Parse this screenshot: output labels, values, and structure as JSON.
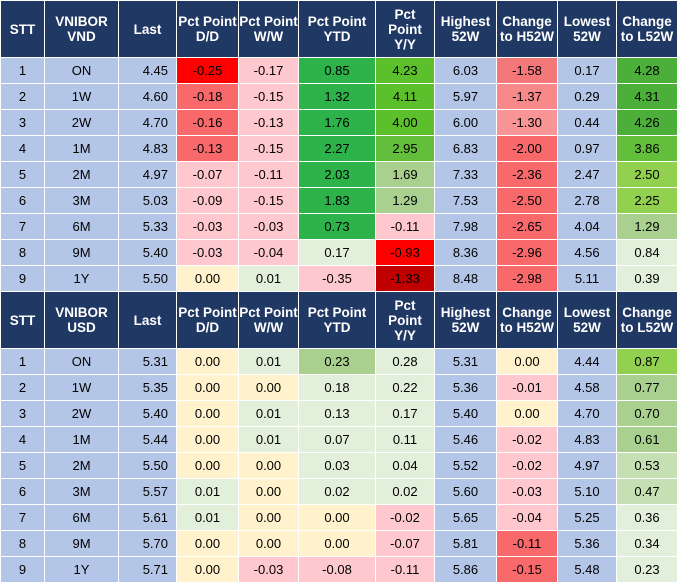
{
  "colors": {
    "header_bg": "#203864",
    "label_bg": "#b4c6e7",
    "text": "#000000"
  },
  "vnd": {
    "headers": {
      "stt": "STT",
      "name": "VNIBOR VND",
      "last": "Last",
      "dd": "Pct Point D/D",
      "ww": "Pct Point W/W",
      "ytd": "Pct Point YTD",
      "yy": "Pct Point Y/Y",
      "h52": "Highest 52W",
      "chh": "Change to H52W",
      "l52": "Lowest 52W",
      "chl": "Change to L52W"
    },
    "rows": [
      {
        "stt": "1",
        "term": "ON",
        "last": "4.45",
        "dd": "-0.25",
        "ww": "-0.17",
        "ytd": "0.85",
        "yy": "4.23",
        "h52": "6.03",
        "chh": "-1.58",
        "l52": "0.17",
        "chl": "4.28",
        "c": {
          "dd": "#ff0000",
          "ww": "#ffc7ce",
          "ytd": "#2db34a",
          "yy": "#5cc02d",
          "h52": "#b4c6e7",
          "chh": "#f4777a",
          "l52": "#b4c6e7",
          "chl": "#4caf3a"
        }
      },
      {
        "stt": "2",
        "term": "1W",
        "last": "4.60",
        "dd": "-0.18",
        "ww": "-0.15",
        "ytd": "1.32",
        "yy": "4.11",
        "h52": "5.97",
        "chh": "-1.37",
        "l52": "0.29",
        "chl": "4.31",
        "c": {
          "dd": "#f8696b",
          "ww": "#ffc7ce",
          "ytd": "#2db34a",
          "yy": "#5cc02d",
          "h52": "#b4c6e7",
          "chh": "#f8898b",
          "l52": "#b4c6e7",
          "chl": "#4caf3a"
        }
      },
      {
        "stt": "3",
        "term": "2W",
        "last": "4.70",
        "dd": "-0.16",
        "ww": "-0.13",
        "ytd": "1.76",
        "yy": "4.00",
        "h52": "6.00",
        "chh": "-1.30",
        "l52": "0.44",
        "chl": "4.26",
        "c": {
          "dd": "#f8696b",
          "ww": "#ffc7ce",
          "ytd": "#2db34a",
          "yy": "#5cc02d",
          "h52": "#b4c6e7",
          "chh": "#f99596",
          "l52": "#b4c6e7",
          "chl": "#4caf3a"
        }
      },
      {
        "stt": "4",
        "term": "1M",
        "last": "4.83",
        "dd": "-0.13",
        "ww": "-0.15",
        "ytd": "2.27",
        "yy": "2.95",
        "h52": "6.83",
        "chh": "-2.00",
        "l52": "0.97",
        "chl": "3.86",
        "c": {
          "dd": "#f8696b",
          "ww": "#ffc7ce",
          "ytd": "#2db34a",
          "yy": "#63be3b",
          "h52": "#b4c6e7",
          "chh": "#f7696b",
          "l52": "#b4c6e7",
          "chl": "#63be3b"
        }
      },
      {
        "stt": "5",
        "term": "2M",
        "last": "4.97",
        "dd": "-0.07",
        "ww": "-0.11",
        "ytd": "2.03",
        "yy": "1.69",
        "h52": "7.33",
        "chh": "-2.36",
        "l52": "2.47",
        "chl": "2.50",
        "c": {
          "dd": "#ffc7ce",
          "ww": "#ffc7ce",
          "ytd": "#2db34a",
          "yy": "#a9d08e",
          "h52": "#b4c6e7",
          "chh": "#f7696b",
          "l52": "#b4c6e7",
          "chl": "#92d050"
        }
      },
      {
        "stt": "6",
        "term": "3M",
        "last": "5.03",
        "dd": "-0.09",
        "ww": "-0.15",
        "ytd": "1.83",
        "yy": "1.29",
        "h52": "7.53",
        "chh": "-2.50",
        "l52": "2.78",
        "chl": "2.25",
        "c": {
          "dd": "#ffc7ce",
          "ww": "#ffc7ce",
          "ytd": "#2db34a",
          "yy": "#a9d08e",
          "h52": "#b4c6e7",
          "chh": "#f7696b",
          "l52": "#b4c6e7",
          "chl": "#92d050"
        }
      },
      {
        "stt": "7",
        "term": "6M",
        "last": "5.33",
        "dd": "-0.03",
        "ww": "-0.03",
        "ytd": "0.73",
        "yy": "-0.11",
        "h52": "7.98",
        "chh": "-2.65",
        "l52": "4.04",
        "chl": "1.29",
        "c": {
          "dd": "#ffc7ce",
          "ww": "#ffc7ce",
          "ytd": "#2db34a",
          "yy": "#ffc7ce",
          "h52": "#b4c6e7",
          "chh": "#f7696b",
          "l52": "#b4c6e7",
          "chl": "#a9d08e"
        }
      },
      {
        "stt": "8",
        "term": "9M",
        "last": "5.40",
        "dd": "-0.03",
        "ww": "-0.04",
        "ytd": "0.17",
        "yy": "-0.93",
        "h52": "8.36",
        "chh": "-2.96",
        "l52": "4.56",
        "chl": "0.84",
        "c": {
          "dd": "#ffc7ce",
          "ww": "#ffc7ce",
          "ytd": "#e2efda",
          "yy": "#ff0000",
          "h52": "#b4c6e7",
          "chh": "#f7696b",
          "l52": "#b4c6e7",
          "chl": "#e2efda"
        }
      },
      {
        "stt": "9",
        "term": "1Y",
        "last": "5.50",
        "dd": "0.00",
        "ww": "0.01",
        "ytd": "-0.35",
        "yy": "-1.33",
        "h52": "8.48",
        "chh": "-2.98",
        "l52": "5.11",
        "chl": "0.39",
        "c": {
          "dd": "#fff2cc",
          "ww": "#e2efda",
          "ytd": "#ffc7ce",
          "yy": "#c00000",
          "h52": "#b4c6e7",
          "chh": "#f7696b",
          "l52": "#b4c6e7",
          "chl": "#e2efda"
        }
      }
    ]
  },
  "usd": {
    "headers": {
      "stt": "STT",
      "name": "VNIBOR USD",
      "last": "Last",
      "dd": "Pct Point D/D",
      "ww": "Pct Point W/W",
      "ytd": "Pct Point YTD",
      "yy": "Pct Point Y/Y",
      "h52": "Highest 52W",
      "chh": "Change to H52W",
      "l52": "Lowest 52W",
      "chl": "Change to L52W"
    },
    "rows": [
      {
        "stt": "1",
        "term": "ON",
        "last": "5.31",
        "dd": "0.00",
        "ww": "0.01",
        "ytd": "0.23",
        "yy": "0.28",
        "h52": "5.31",
        "chh": "0.00",
        "l52": "4.44",
        "chl": "0.87",
        "c": {
          "dd": "#fff2cc",
          "ww": "#e2efda",
          "ytd": "#a9d08e",
          "yy": "#e2efda",
          "h52": "#b4c6e7",
          "chh": "#fff2cc",
          "l52": "#b4c6e7",
          "chl": "#92d050"
        }
      },
      {
        "stt": "2",
        "term": "1W",
        "last": "5.35",
        "dd": "0.00",
        "ww": "0.00",
        "ytd": "0.18",
        "yy": "0.22",
        "h52": "5.36",
        "chh": "-0.01",
        "l52": "4.58",
        "chl": "0.77",
        "c": {
          "dd": "#fff2cc",
          "ww": "#fff2cc",
          "ytd": "#e2efda",
          "yy": "#e2efda",
          "h52": "#b4c6e7",
          "chh": "#ffc7ce",
          "l52": "#b4c6e7",
          "chl": "#a9d08e"
        }
      },
      {
        "stt": "3",
        "term": "2W",
        "last": "5.40",
        "dd": "0.00",
        "ww": "0.01",
        "ytd": "0.13",
        "yy": "0.17",
        "h52": "5.40",
        "chh": "0.00",
        "l52": "4.70",
        "chl": "0.70",
        "c": {
          "dd": "#fff2cc",
          "ww": "#e2efda",
          "ytd": "#e2efda",
          "yy": "#e2efda",
          "h52": "#b4c6e7",
          "chh": "#fff2cc",
          "l52": "#b4c6e7",
          "chl": "#a9d08e"
        }
      },
      {
        "stt": "4",
        "term": "1M",
        "last": "5.44",
        "dd": "0.00",
        "ww": "0.01",
        "ytd": "0.07",
        "yy": "0.11",
        "h52": "5.46",
        "chh": "-0.02",
        "l52": "4.83",
        "chl": "0.61",
        "c": {
          "dd": "#fff2cc",
          "ww": "#e2efda",
          "ytd": "#e2efda",
          "yy": "#e2efda",
          "h52": "#b4c6e7",
          "chh": "#ffc7ce",
          "l52": "#b4c6e7",
          "chl": "#a9d08e"
        }
      },
      {
        "stt": "5",
        "term": "2M",
        "last": "5.50",
        "dd": "0.00",
        "ww": "0.00",
        "ytd": "0.03",
        "yy": "0.04",
        "h52": "5.52",
        "chh": "-0.02",
        "l52": "4.97",
        "chl": "0.53",
        "c": {
          "dd": "#fff2cc",
          "ww": "#fff2cc",
          "ytd": "#e2efda",
          "yy": "#e2efda",
          "h52": "#b4c6e7",
          "chh": "#ffc7ce",
          "l52": "#b4c6e7",
          "chl": "#c6e0b4"
        }
      },
      {
        "stt": "6",
        "term": "3M",
        "last": "5.57",
        "dd": "0.01",
        "ww": "0.00",
        "ytd": "0.02",
        "yy": "0.02",
        "h52": "5.60",
        "chh": "-0.03",
        "l52": "5.10",
        "chl": "0.47",
        "c": {
          "dd": "#e2efda",
          "ww": "#fff2cc",
          "ytd": "#e2efda",
          "yy": "#e2efda",
          "h52": "#b4c6e7",
          "chh": "#ffc7ce",
          "l52": "#b4c6e7",
          "chl": "#c6e0b4"
        }
      },
      {
        "stt": "7",
        "term": "6M",
        "last": "5.61",
        "dd": "0.01",
        "ww": "0.00",
        "ytd": "0.00",
        "yy": "-0.02",
        "h52": "5.65",
        "chh": "-0.04",
        "l52": "5.25",
        "chl": "0.36",
        "c": {
          "dd": "#e2efda",
          "ww": "#fff2cc",
          "ytd": "#fff2cc",
          "yy": "#ffc7ce",
          "h52": "#b4c6e7",
          "chh": "#ffc7ce",
          "l52": "#b4c6e7",
          "chl": "#e2efda"
        }
      },
      {
        "stt": "8",
        "term": "9M",
        "last": "5.70",
        "dd": "0.00",
        "ww": "0.00",
        "ytd": "0.00",
        "yy": "-0.07",
        "h52": "5.81",
        "chh": "-0.11",
        "l52": "5.36",
        "chl": "0.34",
        "c": {
          "dd": "#fff2cc",
          "ww": "#fff2cc",
          "ytd": "#fff2cc",
          "yy": "#ffc7ce",
          "h52": "#b4c6e7",
          "chh": "#f8696b",
          "l52": "#b4c6e7",
          "chl": "#e2efda"
        }
      },
      {
        "stt": "9",
        "term": "1Y",
        "last": "5.71",
        "dd": "0.00",
        "ww": "-0.03",
        "ytd": "-0.08",
        "yy": "-0.11",
        "h52": "5.86",
        "chh": "-0.15",
        "l52": "5.48",
        "chl": "0.23",
        "c": {
          "dd": "#fff2cc",
          "ww": "#ffc7ce",
          "ytd": "#ffc7ce",
          "yy": "#ffc7ce",
          "h52": "#b4c6e7",
          "chh": "#f8696b",
          "l52": "#b4c6e7",
          "chl": "#e2efda"
        }
      }
    ]
  }
}
